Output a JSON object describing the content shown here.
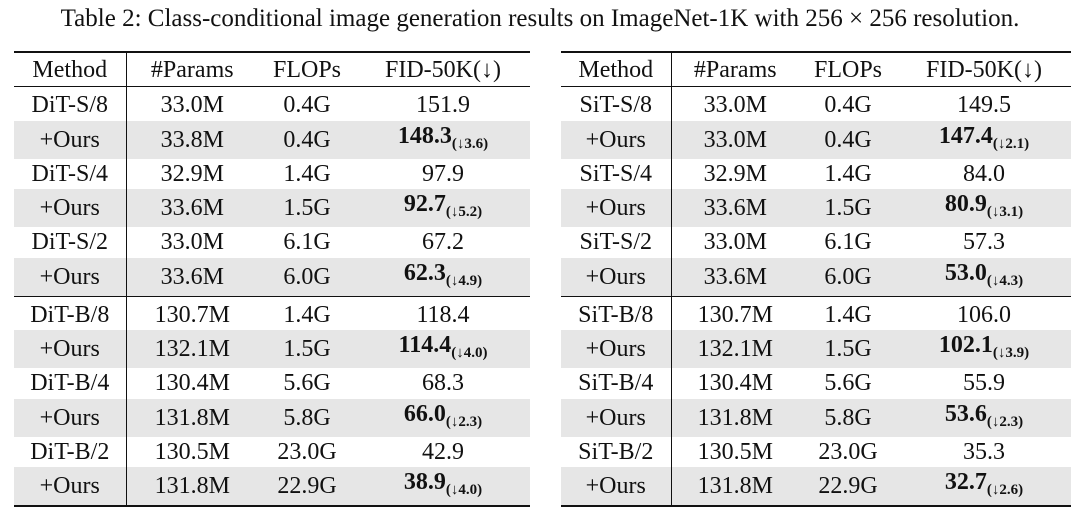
{
  "caption": "Table 2: Class-conditional image generation results on ImageNet-1K with 256 × 256 resolution.",
  "columns": [
    "Method",
    "#Params",
    "FLOPs",
    "FID-50K(↓)"
  ],
  "tables": [
    {
      "groups": [
        [
          {
            "method": "DiT-S/8",
            "params": "33.0M",
            "flops": "0.4G",
            "fid": "151.9",
            "delta": ""
          },
          {
            "method": "+Ours",
            "params": "33.8M",
            "flops": "0.4G",
            "fid": "148.3",
            "delta": "(↓3.6)"
          },
          {
            "method": "DiT-S/4",
            "params": "32.9M",
            "flops": "1.4G",
            "fid": "97.9",
            "delta": ""
          },
          {
            "method": "+Ours",
            "params": "33.6M",
            "flops": "1.5G",
            "fid": "92.7",
            "delta": "(↓5.2)"
          },
          {
            "method": "DiT-S/2",
            "params": "33.0M",
            "flops": "6.1G",
            "fid": "67.2",
            "delta": ""
          },
          {
            "method": "+Ours",
            "params": "33.6M",
            "flops": "6.0G",
            "fid": "62.3",
            "delta": "(↓4.9)"
          }
        ],
        [
          {
            "method": "DiT-B/8",
            "params": "130.7M",
            "flops": "1.4G",
            "fid": "118.4",
            "delta": ""
          },
          {
            "method": "+Ours",
            "params": "132.1M",
            "flops": "1.5G",
            "fid": "114.4",
            "delta": "(↓4.0)"
          },
          {
            "method": "DiT-B/4",
            "params": "130.4M",
            "flops": "5.6G",
            "fid": "68.3",
            "delta": ""
          },
          {
            "method": "+Ours",
            "params": "131.8M",
            "flops": "5.8G",
            "fid": "66.0",
            "delta": "(↓2.3)"
          },
          {
            "method": "DiT-B/2",
            "params": "130.5M",
            "flops": "23.0G",
            "fid": "42.9",
            "delta": ""
          },
          {
            "method": "+Ours",
            "params": "131.8M",
            "flops": "22.9G",
            "fid": "38.9",
            "delta": "(↓4.0)"
          }
        ]
      ]
    },
    {
      "groups": [
        [
          {
            "method": "SiT-S/8",
            "params": "33.0M",
            "flops": "0.4G",
            "fid": "149.5",
            "delta": ""
          },
          {
            "method": "+Ours",
            "params": "33.0M",
            "flops": "0.4G",
            "fid": "147.4",
            "delta": "(↓2.1)"
          },
          {
            "method": "SiT-S/4",
            "params": "32.9M",
            "flops": "1.4G",
            "fid": "84.0",
            "delta": ""
          },
          {
            "method": "+Ours",
            "params": "33.6M",
            "flops": "1.5G",
            "fid": "80.9",
            "delta": "(↓3.1)"
          },
          {
            "method": "SiT-S/2",
            "params": "33.0M",
            "flops": "6.1G",
            "fid": "57.3",
            "delta": ""
          },
          {
            "method": "+Ours",
            "params": "33.6M",
            "flops": "6.0G",
            "fid": "53.0",
            "delta": "(↓4.3)"
          }
        ],
        [
          {
            "method": "SiT-B/8",
            "params": "130.7M",
            "flops": "1.4G",
            "fid": "106.0",
            "delta": ""
          },
          {
            "method": "+Ours",
            "params": "132.1M",
            "flops": "1.5G",
            "fid": "102.1",
            "delta": "(↓3.9)"
          },
          {
            "method": "SiT-B/4",
            "params": "130.4M",
            "flops": "5.6G",
            "fid": "55.9",
            "delta": ""
          },
          {
            "method": "+Ours",
            "params": "131.8M",
            "flops": "5.8G",
            "fid": "53.6",
            "delta": "(↓2.3)"
          },
          {
            "method": "SiT-B/2",
            "params": "130.5M",
            "flops": "23.0G",
            "fid": "35.3",
            "delta": ""
          },
          {
            "method": "+Ours",
            "params": "131.8M",
            "flops": "22.9G",
            "fid": "32.7",
            "delta": "(↓2.6)"
          }
        ]
      ]
    }
  ]
}
